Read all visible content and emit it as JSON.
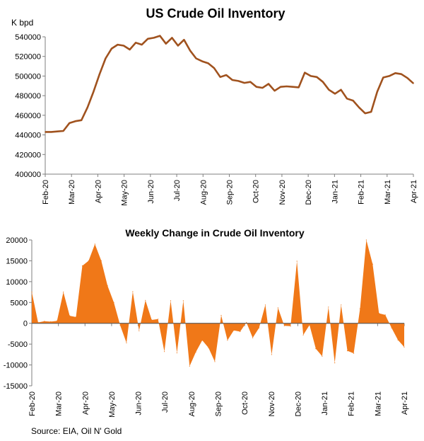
{
  "source": "Source: EIA, Oil N' Gold",
  "colors": {
    "line": "#A0521E",
    "area": "#F07818",
    "axis": "#7f7f7f",
    "grid": "#bfbfbf"
  },
  "chart_data": [
    {
      "type": "line",
      "title": "US Crude Oil Inventory",
      "ylabel": "K bpd",
      "ylim": [
        400000,
        540000
      ],
      "yticks": [
        "540000",
        "520000",
        "500000",
        "480000",
        "460000",
        "440000",
        "420000",
        "400000"
      ],
      "x_labels": [
        "Feb-20",
        "Mar-20",
        "Apr-20",
        "May-20",
        "Jun-20",
        "Jul-20",
        "Aug-20",
        "Sep-20",
        "Oct-20",
        "Nov-20",
        "Dec-20",
        "Jan-21",
        "Feb-21",
        "Mar-21",
        "Apr-21"
      ],
      "series": [
        {
          "name": "US Crude Oil Inventory",
          "values": [
            443000,
            443000,
            443500,
            444000,
            452000,
            454000,
            455000,
            468000,
            484000,
            502000,
            518000,
            528000,
            532000,
            531000,
            527000,
            534000,
            532000,
            538000,
            539000,
            541000,
            533000,
            539000,
            531000,
            537000,
            526000,
            518000,
            515000,
            513000,
            508000,
            499000,
            501000,
            496000,
            495000,
            493000,
            494000,
            489000,
            488000,
            492000,
            485000,
            489000,
            489500,
            489000,
            488500,
            503500,
            500000,
            499000,
            494000,
            486000,
            482000,
            486000,
            477000,
            475000,
            468000,
            462000,
            463500,
            484000,
            498500,
            500000,
            503000,
            502000,
            498000,
            492500
          ]
        }
      ]
    },
    {
      "type": "area",
      "title": "Weekly Change in Crude Oil Inventory",
      "ylim": [
        -15000,
        20000
      ],
      "yticks": [
        "20000",
        "15000",
        "10000",
        "5000",
        "0",
        "-5000",
        "-10000",
        "-15000"
      ],
      "x_labels": [
        "Feb-20",
        "Mar-20",
        "Apr-20",
        "May-20",
        "Jun-20",
        "Jul-20",
        "Aug-20",
        "Sep-20",
        "Oct-20",
        "Nov-20",
        "Dec-20",
        "Jan-21",
        "Feb-21",
        "Mar-21",
        "Apr-21"
      ],
      "series": [
        {
          "name": "Weekly Change",
          "values": [
            7500,
            200,
            500,
            400,
            600,
            7500,
            1800,
            1500,
            13800,
            15000,
            19000,
            15000,
            9000,
            5000,
            -500,
            -4700,
            7600,
            -1800,
            5500,
            800,
            1000,
            -6800,
            5400,
            -7100,
            5400,
            -10300,
            -6900,
            -4100,
            -5900,
            -9200,
            1900,
            -4100,
            -1700,
            -2000,
            200,
            -3500,
            -1100,
            4400,
            -7500,
            3700,
            -600,
            -700,
            14900,
            -2800,
            -400,
            -6100,
            -7900,
            3900,
            -9500,
            4400,
            -6600,
            -7200,
            3500,
            20000,
            14200,
            2400,
            2000,
            -1100,
            -4000,
            -5700
          ]
        }
      ]
    }
  ]
}
